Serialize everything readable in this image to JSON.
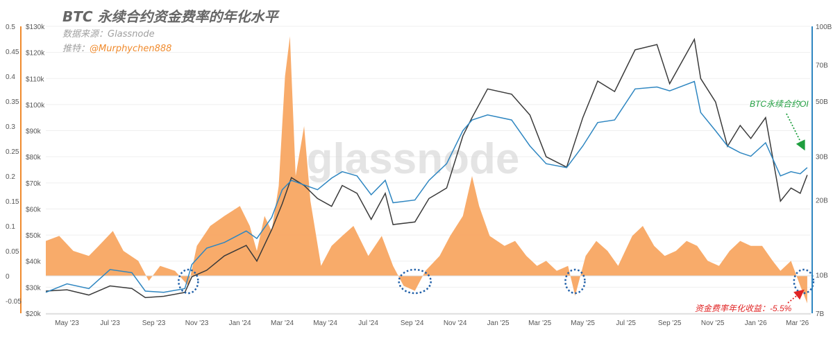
{
  "header": {
    "title": "BTC 永续合约资金费率的年化水平",
    "source": "数据来源：Glassnode",
    "twitter_label": "推特：",
    "twitter_handle": "@Murphychen888"
  },
  "watermark": "glassnode",
  "annotations": {
    "oi_label": "BTC永续合约OI",
    "funding_label": "资金费率年化收益：-5.5%"
  },
  "colors": {
    "funding": "#f7a25a",
    "price": "#3a3a3a",
    "oi": "#2e86c1",
    "oi_axis": "#2e86c1",
    "funding_axis": "#f08a2c",
    "circle": "#1f5fa8",
    "oi_annotation": "#1e9e3e",
    "funding_annotation": "#e02424"
  },
  "chart_data": {
    "type": "line",
    "x_axis": {
      "ticks": [
        "May '23",
        "Jul '23",
        "Sep '23",
        "Nov '23",
        "Jan '24",
        "Mar '24",
        "May '24",
        "Jul '24",
        "Sep '24",
        "Nov '24",
        "Jan '25",
        "Mar '25",
        "May '25",
        "Jul '25",
        "Sep '25",
        "Nov '25",
        "Jan '26",
        "Mar '26"
      ],
      "range": [
        "2023-04-01",
        "2026-03-20"
      ]
    },
    "y_axes": {
      "funding": {
        "ticks": [
          "0.5",
          "0.45",
          "0.4",
          "0.35",
          "0.3",
          "0.25",
          "0.2",
          "0.15",
          "0.1",
          "0.05",
          "0",
          "-0.05"
        ],
        "range": [
          -0.075,
          0.5
        ]
      },
      "price": {
        "ticks": [
          "$130k",
          "$120k",
          "$110k",
          "$100k",
          "$90k",
          "$80k",
          "$70k",
          "$60k",
          "$50k",
          "$40k",
          "$30k",
          "$20k"
        ],
        "range": [
          20000,
          130000
        ]
      },
      "oi": {
        "ticks": [
          "100B",
          "70B",
          "50B",
          "30B",
          "20B",
          "10B",
          "7B"
        ],
        "scale": "log"
      }
    },
    "series": [
      {
        "key": "funding",
        "kind": "area",
        "points": [
          [
            "2023-04-01",
            0.07
          ],
          [
            "2023-04-20",
            0.08
          ],
          [
            "2023-05-10",
            0.05
          ],
          [
            "2023-06-01",
            0.04
          ],
          [
            "2023-06-15",
            0.06
          ],
          [
            "2023-07-05",
            0.09
          ],
          [
            "2023-07-20",
            0.05
          ],
          [
            "2023-08-10",
            0.03
          ],
          [
            "2023-08-25",
            -0.01
          ],
          [
            "2023-09-10",
            0.02
          ],
          [
            "2023-10-01",
            0.01
          ],
          [
            "2023-10-20",
            -0.02
          ],
          [
            "2023-11-01",
            0.06
          ],
          [
            "2023-11-20",
            0.1
          ],
          [
            "2023-12-10",
            0.12
          ],
          [
            "2024-01-01",
            0.14
          ],
          [
            "2024-01-15",
            0.1
          ],
          [
            "2024-01-25",
            0.05
          ],
          [
            "2024-02-05",
            0.12
          ],
          [
            "2024-02-15",
            0.09
          ],
          [
            "2024-02-25",
            0.18
          ],
          [
            "2024-03-05",
            0.4
          ],
          [
            "2024-03-12",
            0.48
          ],
          [
            "2024-03-20",
            0.2
          ],
          [
            "2024-04-01",
            0.3
          ],
          [
            "2024-04-10",
            0.15
          ],
          [
            "2024-04-25",
            0.02
          ],
          [
            "2024-05-10",
            0.06
          ],
          [
            "2024-05-25",
            0.08
          ],
          [
            "2024-06-10",
            0.1
          ],
          [
            "2024-07-01",
            0.04
          ],
          [
            "2024-07-20",
            0.08
          ],
          [
            "2024-08-05",
            0.02
          ],
          [
            "2024-08-20",
            -0.02
          ],
          [
            "2024-09-05",
            -0.03
          ],
          [
            "2024-09-20",
            0.01
          ],
          [
            "2024-10-10",
            0.04
          ],
          [
            "2024-10-25",
            0.08
          ],
          [
            "2024-11-12",
            0.12
          ],
          [
            "2024-11-25",
            0.2
          ],
          [
            "2024-12-05",
            0.14
          ],
          [
            "2024-12-20",
            0.08
          ],
          [
            "2025-01-10",
            0.06
          ],
          [
            "2025-01-25",
            0.07
          ],
          [
            "2025-02-10",
            0.04
          ],
          [
            "2025-02-25",
            0.02
          ],
          [
            "2025-03-10",
            0.03
          ],
          [
            "2025-03-25",
            0.01
          ],
          [
            "2025-04-10",
            0.02
          ],
          [
            "2025-04-20",
            -0.04
          ],
          [
            "2025-05-05",
            0.04
          ],
          [
            "2025-05-20",
            0.07
          ],
          [
            "2025-06-05",
            0.05
          ],
          [
            "2025-06-20",
            0.02
          ],
          [
            "2025-07-10",
            0.08
          ],
          [
            "2025-07-25",
            0.1
          ],
          [
            "2025-08-10",
            0.06
          ],
          [
            "2025-08-25",
            0.04
          ],
          [
            "2025-09-10",
            0.05
          ],
          [
            "2025-09-25",
            0.07
          ],
          [
            "2025-10-10",
            0.06
          ],
          [
            "2025-10-25",
            0.03
          ],
          [
            "2025-11-10",
            0.02
          ],
          [
            "2025-11-25",
            0.05
          ],
          [
            "2025-12-10",
            0.07
          ],
          [
            "2025-12-25",
            0.06
          ],
          [
            "2026-01-10",
            0.06
          ],
          [
            "2026-01-25",
            0.03
          ],
          [
            "2026-02-05",
            0.01
          ],
          [
            "2026-02-20",
            0.03
          ],
          [
            "2026-03-05",
            -0.02
          ],
          [
            "2026-03-15",
            -0.055
          ]
        ]
      },
      {
        "key": "price",
        "kind": "line",
        "points": [
          [
            "2023-04-01",
            28500
          ],
          [
            "2023-05-01",
            29000
          ],
          [
            "2023-06-01",
            27000
          ],
          [
            "2023-07-01",
            30500
          ],
          [
            "2023-08-01",
            29500
          ],
          [
            "2023-08-20",
            26000
          ],
          [
            "2023-09-15",
            26500
          ],
          [
            "2023-10-15",
            28000
          ],
          [
            "2023-10-25",
            34000
          ],
          [
            "2023-11-15",
            36500
          ],
          [
            "2023-12-10",
            42000
          ],
          [
            "2024-01-10",
            46000
          ],
          [
            "2024-01-25",
            40000
          ],
          [
            "2024-02-15",
            52000
          ],
          [
            "2024-03-01",
            62000
          ],
          [
            "2024-03-14",
            72000
          ],
          [
            "2024-04-01",
            69000
          ],
          [
            "2024-04-20",
            64000
          ],
          [
            "2024-05-10",
            61000
          ],
          [
            "2024-05-25",
            69000
          ],
          [
            "2024-06-15",
            66000
          ],
          [
            "2024-07-05",
            56000
          ],
          [
            "2024-07-25",
            66000
          ],
          [
            "2024-08-05",
            54000
          ],
          [
            "2024-09-05",
            55000
          ],
          [
            "2024-09-25",
            64000
          ],
          [
            "2024-10-20",
            68000
          ],
          [
            "2024-11-12",
            88000
          ],
          [
            "2024-11-25",
            95000
          ],
          [
            "2024-12-17",
            106000
          ],
          [
            "2025-01-20",
            104000
          ],
          [
            "2025-02-15",
            96000
          ],
          [
            "2025-03-10",
            80000
          ],
          [
            "2025-04-08",
            76000
          ],
          [
            "2025-05-01",
            95000
          ],
          [
            "2025-05-22",
            109000
          ],
          [
            "2025-06-15",
            105000
          ],
          [
            "2025-07-14",
            121000
          ],
          [
            "2025-08-14",
            123000
          ],
          [
            "2025-09-01",
            108000
          ],
          [
            "2025-10-06",
            125000
          ],
          [
            "2025-10-15",
            110000
          ],
          [
            "2025-11-05",
            101000
          ],
          [
            "2025-11-22",
            84000
          ],
          [
            "2025-12-10",
            92000
          ],
          [
            "2025-12-25",
            87000
          ],
          [
            "2026-01-15",
            95000
          ],
          [
            "2026-02-05",
            63000
          ],
          [
            "2026-02-20",
            68000
          ],
          [
            "2026-03-05",
            66000
          ],
          [
            "2026-03-15",
            73000
          ]
        ]
      },
      {
        "key": "oi",
        "kind": "line",
        "points": [
          [
            "2023-04-01",
            8.5
          ],
          [
            "2023-05-01",
            9.2
          ],
          [
            "2023-06-01",
            8.8
          ],
          [
            "2023-07-01",
            10.5
          ],
          [
            "2023-08-01",
            10.2
          ],
          [
            "2023-08-20",
            8.6
          ],
          [
            "2023-09-15",
            8.5
          ],
          [
            "2023-10-15",
            8.8
          ],
          [
            "2023-10-25",
            11.0
          ],
          [
            "2023-11-15",
            12.8
          ],
          [
            "2023-12-10",
            13.5
          ],
          [
            "2024-01-10",
            15.0
          ],
          [
            "2024-01-25",
            14.0
          ],
          [
            "2024-02-15",
            17.0
          ],
          [
            "2024-03-01",
            22.0
          ],
          [
            "2024-03-14",
            24.0
          ],
          [
            "2024-04-01",
            23.0
          ],
          [
            "2024-04-20",
            22.0
          ],
          [
            "2024-05-10",
            24.5
          ],
          [
            "2024-05-25",
            26.0
          ],
          [
            "2024-06-15",
            25.0
          ],
          [
            "2024-07-05",
            21.0
          ],
          [
            "2024-07-25",
            24.0
          ],
          [
            "2024-08-05",
            19.5
          ],
          [
            "2024-09-05",
            20.0
          ],
          [
            "2024-09-25",
            24.0
          ],
          [
            "2024-10-20",
            28.0
          ],
          [
            "2024-11-12",
            38.0
          ],
          [
            "2024-11-25",
            42.0
          ],
          [
            "2024-12-17",
            44.0
          ],
          [
            "2025-01-20",
            42.0
          ],
          [
            "2025-02-15",
            33.0
          ],
          [
            "2025-03-10",
            28.0
          ],
          [
            "2025-04-08",
            27.0
          ],
          [
            "2025-05-01",
            33.0
          ],
          [
            "2025-05-22",
            41.0
          ],
          [
            "2025-06-15",
            42.0
          ],
          [
            "2025-07-14",
            56.0
          ],
          [
            "2025-08-14",
            57.0
          ],
          [
            "2025-09-01",
            55.0
          ],
          [
            "2025-10-06",
            60.0
          ],
          [
            "2025-10-15",
            45.0
          ],
          [
            "2025-11-05",
            38.0
          ],
          [
            "2025-11-22",
            33.0
          ],
          [
            "2025-12-10",
            31.0
          ],
          [
            "2025-12-25",
            30.0
          ],
          [
            "2026-01-15",
            34.0
          ],
          [
            "2026-02-05",
            25.0
          ],
          [
            "2026-02-20",
            26.0
          ],
          [
            "2026-03-05",
            25.5
          ],
          [
            "2026-03-15",
            27.0
          ]
        ]
      }
    ],
    "highlighted_dates": [
      "2023-10-20",
      "2024-09-05",
      "2025-04-20",
      "2026-03-10"
    ]
  }
}
